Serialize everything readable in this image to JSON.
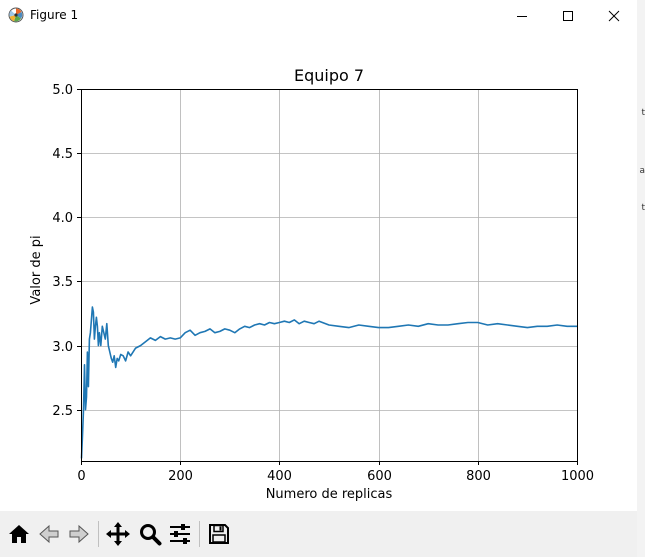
{
  "window": {
    "title": "Figure 1",
    "controls": [
      "minimize",
      "maximize",
      "close"
    ]
  },
  "toolbar": {
    "buttons": [
      {
        "name": "home",
        "icon": "home-icon"
      },
      {
        "name": "back",
        "icon": "arrow-left-icon"
      },
      {
        "name": "forward",
        "icon": "arrow-right-icon"
      },
      {
        "name": "pan",
        "icon": "move-icon"
      },
      {
        "name": "zoom",
        "icon": "magnifier-icon"
      },
      {
        "name": "configure-subplots",
        "icon": "sliders-icon"
      },
      {
        "name": "save",
        "icon": "floppy-disk-icon"
      }
    ]
  },
  "chart_data": {
    "type": "line",
    "title": "Equipo 7",
    "xlabel": "Numero de replicas",
    "ylabel": "Valor de pi",
    "xlim": [
      0,
      1000
    ],
    "ylim": [
      2.1,
      5.0
    ],
    "xticks": [
      0,
      200,
      400,
      600,
      800,
      1000
    ],
    "yticks": [
      2.5,
      3.0,
      3.5,
      4.0,
      4.5,
      5.0
    ],
    "xtick_labels": [
      "0",
      "200",
      "400",
      "600",
      "800",
      "1000"
    ],
    "ytick_labels": [
      "2.5",
      "3.0",
      "3.5",
      "4.0",
      "4.5",
      "5.0"
    ],
    "grid": true,
    "legend": "none",
    "series": [
      {
        "color": "#1f77b4",
        "x": [
          1,
          3,
          5,
          7,
          9,
          11,
          13,
          15,
          17,
          19,
          21,
          23,
          25,
          27,
          29,
          31,
          33,
          35,
          37,
          40,
          43,
          46,
          49,
          52,
          55,
          58,
          61,
          64,
          67,
          70,
          73,
          76,
          80,
          85,
          90,
          95,
          100,
          110,
          120,
          130,
          140,
          150,
          160,
          170,
          180,
          190,
          200,
          210,
          220,
          230,
          240,
          250,
          260,
          270,
          280,
          290,
          300,
          310,
          320,
          330,
          340,
          350,
          360,
          370,
          380,
          390,
          400,
          410,
          420,
          430,
          440,
          450,
          460,
          470,
          480,
          500,
          520,
          540,
          560,
          580,
          600,
          620,
          640,
          660,
          680,
          700,
          720,
          740,
          760,
          780,
          800,
          820,
          840,
          860,
          880,
          900,
          920,
          940,
          960,
          980,
          1000
        ],
        "y": [
          2.12,
          2.3,
          2.5,
          2.85,
          2.5,
          2.6,
          2.95,
          2.68,
          3.05,
          3.1,
          3.2,
          3.3,
          3.26,
          3.05,
          3.15,
          3.22,
          3.15,
          3.0,
          3.1,
          3.0,
          3.15,
          3.1,
          3.05,
          3.17,
          3.0,
          2.95,
          2.9,
          2.87,
          2.92,
          2.83,
          2.9,
          2.88,
          2.93,
          2.92,
          2.88,
          2.95,
          2.92,
          2.98,
          3.0,
          3.03,
          3.06,
          3.04,
          3.07,
          3.05,
          3.06,
          3.05,
          3.06,
          3.1,
          3.12,
          3.08,
          3.1,
          3.11,
          3.13,
          3.1,
          3.11,
          3.13,
          3.12,
          3.1,
          3.13,
          3.15,
          3.14,
          3.16,
          3.17,
          3.16,
          3.18,
          3.17,
          3.18,
          3.19,
          3.18,
          3.2,
          3.17,
          3.19,
          3.18,
          3.17,
          3.19,
          3.16,
          3.15,
          3.14,
          3.16,
          3.15,
          3.14,
          3.14,
          3.15,
          3.16,
          3.15,
          3.17,
          3.16,
          3.16,
          3.17,
          3.18,
          3.18,
          3.16,
          3.17,
          3.16,
          3.15,
          3.14,
          3.15,
          3.15,
          3.16,
          3.15,
          3.15
        ]
      }
    ]
  }
}
